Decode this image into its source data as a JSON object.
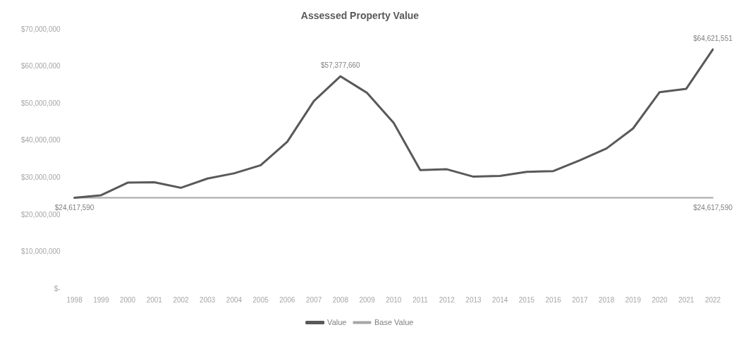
{
  "chart_data": {
    "type": "line",
    "title": "Assessed Property Value",
    "categories": [
      "1998",
      "1999",
      "2000",
      "2001",
      "2002",
      "2003",
      "2004",
      "2005",
      "2006",
      "2007",
      "2008",
      "2009",
      "2010",
      "2011",
      "2012",
      "2013",
      "2014",
      "2015",
      "2016",
      "2017",
      "2018",
      "2019",
      "2020",
      "2021",
      "2022"
    ],
    "series": [
      {
        "name": "Value",
        "color": "#595959",
        "values": [
          24617590,
          25300000,
          28700000,
          28800000,
          27300000,
          29800000,
          31200000,
          33400000,
          39700000,
          50700000,
          57377660,
          52900000,
          44800000,
          32100000,
          32300000,
          30300000,
          30500000,
          31600000,
          31800000,
          34700000,
          37900000,
          43300000,
          53100000,
          54000000,
          64621551
        ],
        "value_labels": [
          "$24,617,590",
          null,
          null,
          null,
          null,
          null,
          null,
          null,
          null,
          null,
          "$57,377,660",
          null,
          null,
          null,
          null,
          null,
          null,
          null,
          null,
          null,
          null,
          null,
          null,
          null,
          "$64,621,551"
        ]
      },
      {
        "name": "Base Value",
        "color": "#a6a6a6",
        "values": [
          24617590,
          24617590,
          24617590,
          24617590,
          24617590,
          24617590,
          24617590,
          24617590,
          24617590,
          24617590,
          24617590,
          24617590,
          24617590,
          24617590,
          24617590,
          24617590,
          24617590,
          24617590,
          24617590,
          24617590,
          24617590,
          24617590,
          24617590,
          24617590,
          24617590
        ],
        "value_labels": [
          null,
          null,
          null,
          null,
          null,
          null,
          null,
          null,
          null,
          null,
          null,
          null,
          null,
          null,
          null,
          null,
          null,
          null,
          null,
          null,
          null,
          null,
          null,
          null,
          "$24,617,590"
        ]
      }
    ],
    "ylim": [
      0,
      70000000
    ],
    "yticks": [
      {
        "value": 0,
        "label": "$-"
      },
      {
        "value": 10000000,
        "label": "$10,000,000"
      },
      {
        "value": 20000000,
        "label": "$20,000,000"
      },
      {
        "value": 30000000,
        "label": "$30,000,000"
      },
      {
        "value": 40000000,
        "label": "$40,000,000"
      },
      {
        "value": 50000000,
        "label": "$50,000,000"
      },
      {
        "value": 60000000,
        "label": "$60,000,000"
      },
      {
        "value": 70000000,
        "label": "$70,000,000"
      }
    ],
    "grid": false,
    "legend": "bottom",
    "marker": "none",
    "line_style": "solid"
  }
}
